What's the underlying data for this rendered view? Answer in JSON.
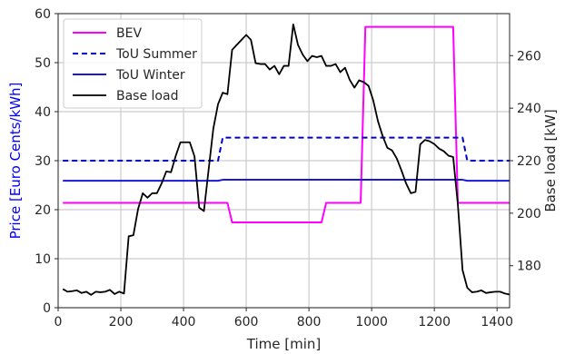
{
  "chart_data": {
    "type": "line",
    "xlabel": "Time [min]",
    "ylabel_left": "Price [Euro Cents/kWh]",
    "ylabel_right": "Base load [kW]",
    "xlim": [
      0,
      1440
    ],
    "ylim_left": [
      0,
      60
    ],
    "ylim_right": [
      164,
      276
    ],
    "x_ticks": [
      0,
      200,
      400,
      600,
      800,
      1000,
      1200,
      1400
    ],
    "y_left_ticks": [
      0,
      10,
      20,
      30,
      40,
      50,
      60
    ],
    "y_right_ticks": [
      180,
      200,
      220,
      240,
      260
    ],
    "grid": true,
    "legend_position": "top-left",
    "colors": {
      "bev": "#ff00ff",
      "tou_summer": "#0000cc",
      "tou_winter": "#1a1ad6",
      "base_load": "#000000",
      "left_axis_label": "#0000ff",
      "grid": "#cccccc"
    },
    "series": [
      {
        "name": "BEV",
        "axis": "left",
        "style": "solid",
        "x": [
          15,
          540,
          555,
          840,
          855,
          965,
          980,
          1260,
          1275,
          1440
        ],
        "y": [
          21.4,
          21.4,
          17.4,
          17.4,
          21.4,
          21.4,
          57.3,
          57.3,
          21.4,
          21.4
        ]
      },
      {
        "name": "ToU Summer",
        "axis": "left",
        "style": "dashed",
        "x": [
          15,
          510,
          525,
          1290,
          1305,
          1440
        ],
        "y": [
          30.0,
          30.0,
          34.7,
          34.7,
          30.0,
          30.0
        ]
      },
      {
        "name": "ToU Winter",
        "axis": "left",
        "style": "solid",
        "x": [
          15,
          510,
          525,
          1290,
          1305,
          1440
        ],
        "y": [
          25.9,
          25.9,
          26.1,
          26.1,
          25.9,
          25.9
        ]
      },
      {
        "name": "Base load",
        "axis": "right",
        "style": "solid",
        "x": [
          15,
          30,
          45,
          60,
          75,
          90,
          105,
          120,
          135,
          150,
          165,
          180,
          195,
          210,
          225,
          240,
          255,
          270,
          285,
          300,
          315,
          330,
          345,
          360,
          375,
          390,
          405,
          420,
          435,
          450,
          465,
          480,
          495,
          510,
          525,
          540,
          555,
          570,
          585,
          600,
          615,
          630,
          645,
          660,
          675,
          690,
          705,
          720,
          735,
          750,
          765,
          780,
          795,
          810,
          825,
          840,
          855,
          870,
          885,
          900,
          915,
          930,
          945,
          960,
          975,
          990,
          1005,
          1020,
          1035,
          1050,
          1065,
          1080,
          1095,
          1110,
          1125,
          1140,
          1155,
          1170,
          1185,
          1200,
          1215,
          1230,
          1245,
          1260,
          1275,
          1290,
          1305,
          1320,
          1335,
          1350,
          1365,
          1380,
          1395,
          1410,
          1425,
          1440
        ],
        "y": [
          171.1,
          170.1,
          170.3,
          170.6,
          169.6,
          170.1,
          168.9,
          170.1,
          169.9,
          170.1,
          170.8,
          169.2,
          170.1,
          169.4,
          191.2,
          191.6,
          201.6,
          207.6,
          205.9,
          207.6,
          207.6,
          211.3,
          215.9,
          215.6,
          221.8,
          227.0,
          227.0,
          227.0,
          221.6,
          202.1,
          200.8,
          216.6,
          232.2,
          241.5,
          245.9,
          245.3,
          262.2,
          264.1,
          266.0,
          267.9,
          266.0,
          257.1,
          256.8,
          256.8,
          254.7,
          256.1,
          252.9,
          256.1,
          256.1,
          271.9,
          264.1,
          260.4,
          257.9,
          259.9,
          259.4,
          259.9,
          256.1,
          256.1,
          256.8,
          253.7,
          255.4,
          250.8,
          247.8,
          250.6,
          249.9,
          248.5,
          243.0,
          235.1,
          229.4,
          224.9,
          223.9,
          220.9,
          216.3,
          211.3,
          207.6,
          208.1,
          226.2,
          227.9,
          227.4,
          226.3,
          224.6,
          223.6,
          221.9,
          221.4,
          203.3,
          178.3,
          171.6,
          169.9,
          170.1,
          170.6,
          169.6,
          169.9,
          170.1,
          170.1,
          169.4,
          169.0
        ]
      }
    ]
  }
}
